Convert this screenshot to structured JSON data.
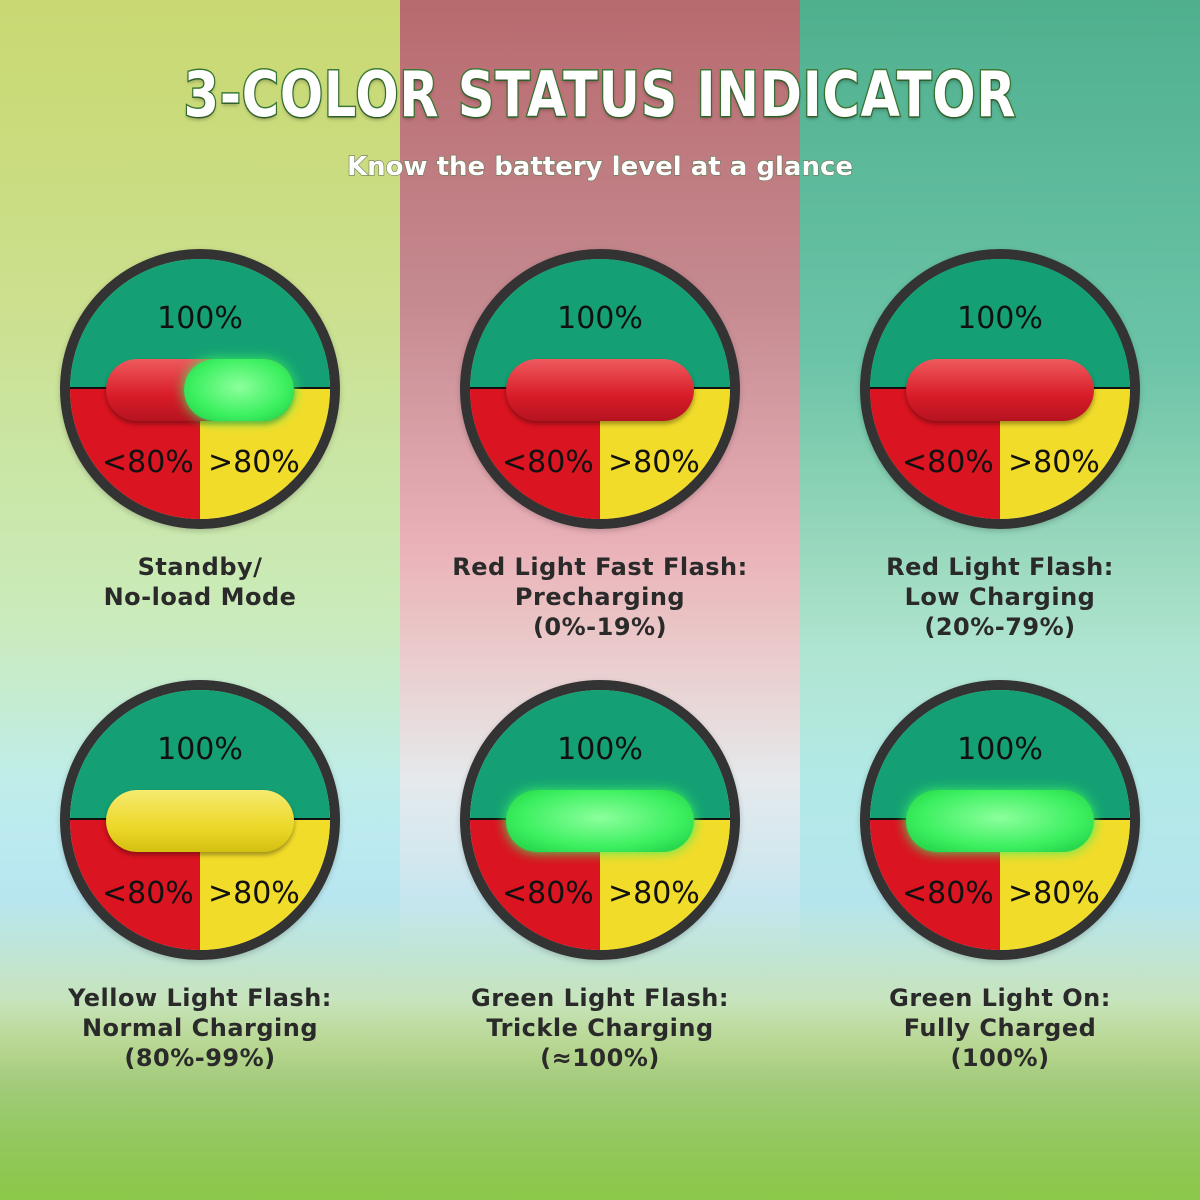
{
  "title": "3-COLOR STATUS INDICATOR",
  "subtitle": "Know the battery level at a glance",
  "segment_labels": {
    "top": "100%",
    "left": "<80%",
    "right": ">80%"
  },
  "colors": {
    "top": "#14a074",
    "left": "#da1420",
    "right": "#f2dc2a",
    "red_light": "#d81c28",
    "yellow_light": "#ecd828",
    "green_light": "#3cf060"
  },
  "indicators": [
    {
      "light": "red-green",
      "lines": [
        "Standby/",
        "No-load Mode",
        ""
      ]
    },
    {
      "light": "red",
      "lines": [
        "Red Light Fast Flash:",
        "Precharging",
        "(0%-19%)"
      ]
    },
    {
      "light": "red",
      "lines": [
        "Red Light Flash:",
        "Low Charging",
        "(20%-79%)"
      ]
    },
    {
      "light": "yellow",
      "lines": [
        "Yellow Light Flash:",
        "Normal Charging",
        "(80%-99%)"
      ]
    },
    {
      "light": "green",
      "lines": [
        "Green Light Flash:",
        "Trickle Charging",
        "(≈100%)"
      ]
    },
    {
      "light": "green",
      "lines": [
        "Green Light On:",
        "Fully Charged",
        "(100%)"
      ]
    }
  ]
}
